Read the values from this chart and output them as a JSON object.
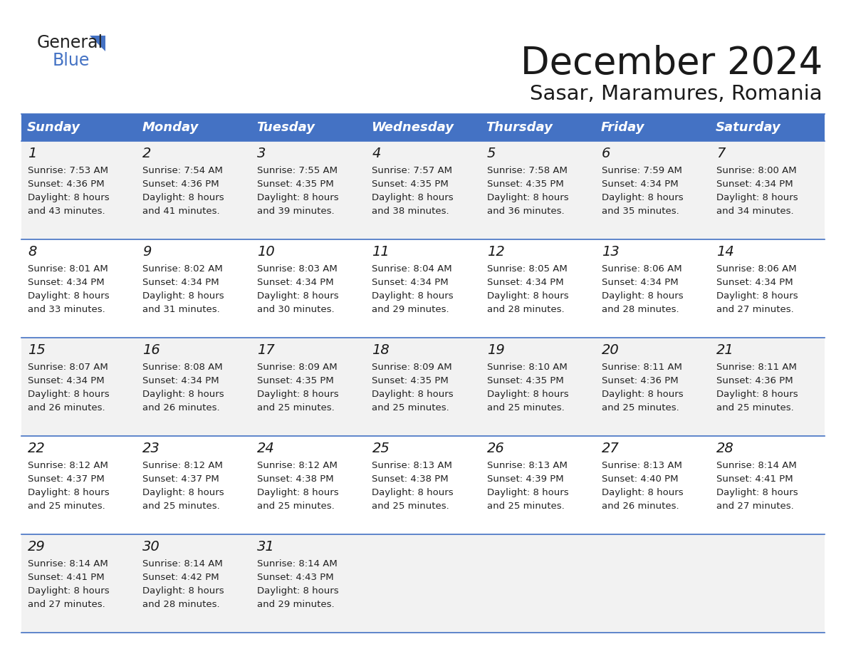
{
  "title": "December 2024",
  "subtitle": "Sasar, Maramures, Romania",
  "header_bg_color": "#4472C4",
  "header_text_color": "#FFFFFF",
  "row_bg_colors": [
    "#F2F2F2",
    "#FFFFFF",
    "#F2F2F2",
    "#FFFFFF",
    "#F2F2F2"
  ],
  "day_names": [
    "Sunday",
    "Monday",
    "Tuesday",
    "Wednesday",
    "Thursday",
    "Friday",
    "Saturday"
  ],
  "calendar": [
    [
      {
        "day": 1,
        "sunrise": "7:53 AM",
        "sunset": "4:36 PM",
        "daylight": "8 hours",
        "daylight2": "and 43 minutes."
      },
      {
        "day": 2,
        "sunrise": "7:54 AM",
        "sunset": "4:36 PM",
        "daylight": "8 hours",
        "daylight2": "and 41 minutes."
      },
      {
        "day": 3,
        "sunrise": "7:55 AM",
        "sunset": "4:35 PM",
        "daylight": "8 hours",
        "daylight2": "and 39 minutes."
      },
      {
        "day": 4,
        "sunrise": "7:57 AM",
        "sunset": "4:35 PM",
        "daylight": "8 hours",
        "daylight2": "and 38 minutes."
      },
      {
        "day": 5,
        "sunrise": "7:58 AM",
        "sunset": "4:35 PM",
        "daylight": "8 hours",
        "daylight2": "and 36 minutes."
      },
      {
        "day": 6,
        "sunrise": "7:59 AM",
        "sunset": "4:34 PM",
        "daylight": "8 hours",
        "daylight2": "and 35 minutes."
      },
      {
        "day": 7,
        "sunrise": "8:00 AM",
        "sunset": "4:34 PM",
        "daylight": "8 hours",
        "daylight2": "and 34 minutes."
      }
    ],
    [
      {
        "day": 8,
        "sunrise": "8:01 AM",
        "sunset": "4:34 PM",
        "daylight": "8 hours",
        "daylight2": "and 33 minutes."
      },
      {
        "day": 9,
        "sunrise": "8:02 AM",
        "sunset": "4:34 PM",
        "daylight": "8 hours",
        "daylight2": "and 31 minutes."
      },
      {
        "day": 10,
        "sunrise": "8:03 AM",
        "sunset": "4:34 PM",
        "daylight": "8 hours",
        "daylight2": "and 30 minutes."
      },
      {
        "day": 11,
        "sunrise": "8:04 AM",
        "sunset": "4:34 PM",
        "daylight": "8 hours",
        "daylight2": "and 29 minutes."
      },
      {
        "day": 12,
        "sunrise": "8:05 AM",
        "sunset": "4:34 PM",
        "daylight": "8 hours",
        "daylight2": "and 28 minutes."
      },
      {
        "day": 13,
        "sunrise": "8:06 AM",
        "sunset": "4:34 PM",
        "daylight": "8 hours",
        "daylight2": "and 28 minutes."
      },
      {
        "day": 14,
        "sunrise": "8:06 AM",
        "sunset": "4:34 PM",
        "daylight": "8 hours",
        "daylight2": "and 27 minutes."
      }
    ],
    [
      {
        "day": 15,
        "sunrise": "8:07 AM",
        "sunset": "4:34 PM",
        "daylight": "8 hours",
        "daylight2": "and 26 minutes."
      },
      {
        "day": 16,
        "sunrise": "8:08 AM",
        "sunset": "4:34 PM",
        "daylight": "8 hours",
        "daylight2": "and 26 minutes."
      },
      {
        "day": 17,
        "sunrise": "8:09 AM",
        "sunset": "4:35 PM",
        "daylight": "8 hours",
        "daylight2": "and 25 minutes."
      },
      {
        "day": 18,
        "sunrise": "8:09 AM",
        "sunset": "4:35 PM",
        "daylight": "8 hours",
        "daylight2": "and 25 minutes."
      },
      {
        "day": 19,
        "sunrise": "8:10 AM",
        "sunset": "4:35 PM",
        "daylight": "8 hours",
        "daylight2": "and 25 minutes."
      },
      {
        "day": 20,
        "sunrise": "8:11 AM",
        "sunset": "4:36 PM",
        "daylight": "8 hours",
        "daylight2": "and 25 minutes."
      },
      {
        "day": 21,
        "sunrise": "8:11 AM",
        "sunset": "4:36 PM",
        "daylight": "8 hours",
        "daylight2": "and 25 minutes."
      }
    ],
    [
      {
        "day": 22,
        "sunrise": "8:12 AM",
        "sunset": "4:37 PM",
        "daylight": "8 hours",
        "daylight2": "and 25 minutes."
      },
      {
        "day": 23,
        "sunrise": "8:12 AM",
        "sunset": "4:37 PM",
        "daylight": "8 hours",
        "daylight2": "and 25 minutes."
      },
      {
        "day": 24,
        "sunrise": "8:12 AM",
        "sunset": "4:38 PM",
        "daylight": "8 hours",
        "daylight2": "and 25 minutes."
      },
      {
        "day": 25,
        "sunrise": "8:13 AM",
        "sunset": "4:38 PM",
        "daylight": "8 hours",
        "daylight2": "and 25 minutes."
      },
      {
        "day": 26,
        "sunrise": "8:13 AM",
        "sunset": "4:39 PM",
        "daylight": "8 hours",
        "daylight2": "and 25 minutes."
      },
      {
        "day": 27,
        "sunrise": "8:13 AM",
        "sunset": "4:40 PM",
        "daylight": "8 hours",
        "daylight2": "and 26 minutes."
      },
      {
        "day": 28,
        "sunrise": "8:14 AM",
        "sunset": "4:41 PM",
        "daylight": "8 hours",
        "daylight2": "and 27 minutes."
      }
    ],
    [
      {
        "day": 29,
        "sunrise": "8:14 AM",
        "sunset": "4:41 PM",
        "daylight": "8 hours",
        "daylight2": "and 27 minutes."
      },
      {
        "day": 30,
        "sunrise": "8:14 AM",
        "sunset": "4:42 PM",
        "daylight": "8 hours",
        "daylight2": "and 28 minutes."
      },
      {
        "day": 31,
        "sunrise": "8:14 AM",
        "sunset": "4:43 PM",
        "daylight": "8 hours",
        "daylight2": "and 29 minutes."
      },
      null,
      null,
      null,
      null
    ]
  ]
}
